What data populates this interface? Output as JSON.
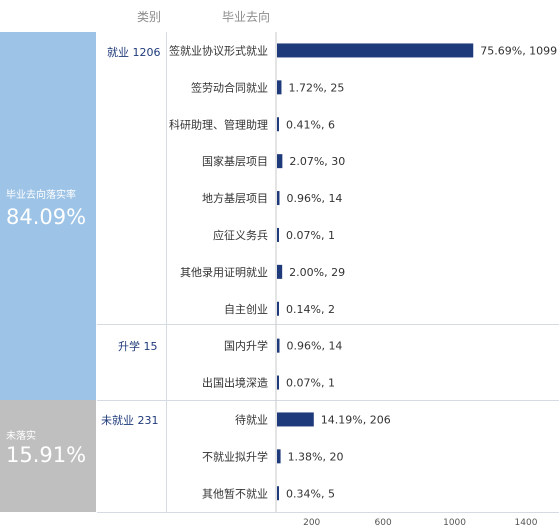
{
  "header": {
    "col_category": "类别",
    "col_destination": "毕业去向"
  },
  "left_blocks": [
    {
      "label": "毕业去向落实率",
      "value": "84.09%",
      "color": "#9dc3e6"
    },
    {
      "label": "未落实",
      "value": "15.91%",
      "color": "#bfbfbf"
    }
  ],
  "categories": [
    {
      "label": "就业 1206"
    },
    {
      "label": "升学 15"
    },
    {
      "label": "未就业 231"
    }
  ],
  "chart_data": {
    "type": "bar",
    "orientation": "horizontal",
    "bar_color": "#1f3a7a",
    "xlim": [
      0,
      1400
    ],
    "xticks": [
      200,
      600,
      1000,
      1400
    ],
    "rows": [
      {
        "group": "就业 1206",
        "label": "签就业协议形式就业",
        "value": 1099,
        "percent": "75.69%",
        "display": "75.69%, 1099"
      },
      {
        "group": "就业 1206",
        "label": "签劳动合同就业",
        "value": 25,
        "percent": "1.72%",
        "display": "1.72%, 25"
      },
      {
        "group": "就业 1206",
        "label": "科研助理、管理助理",
        "value": 6,
        "percent": "0.41%",
        "display": "0.41%, 6"
      },
      {
        "group": "就业 1206",
        "label": "国家基层项目",
        "value": 30,
        "percent": "2.07%",
        "display": "2.07%, 30"
      },
      {
        "group": "就业 1206",
        "label": "地方基层项目",
        "value": 14,
        "percent": "0.96%",
        "display": "0.96%, 14"
      },
      {
        "group": "就业 1206",
        "label": "应征义务兵",
        "value": 1,
        "percent": "0.07%",
        "display": "0.07%, 1"
      },
      {
        "group": "就业 1206",
        "label": "其他录用证明就业",
        "value": 29,
        "percent": "2.00%",
        "display": "2.00%, 29"
      },
      {
        "group": "就业 1206",
        "label": "自主创业",
        "value": 2,
        "percent": "0.14%",
        "display": "0.14%, 2"
      },
      {
        "group": "升学 15",
        "label": "国内升学",
        "value": 14,
        "percent": "0.96%",
        "display": "0.96%, 14"
      },
      {
        "group": "升学 15",
        "label": "出国出境深造",
        "value": 1,
        "percent": "0.07%",
        "display": "0.07%, 1"
      },
      {
        "group": "未就业 231",
        "label": "待就业",
        "value": 206,
        "percent": "14.19%",
        "display": "14.19%, 206"
      },
      {
        "group": "未就业 231",
        "label": "不就业拟升学",
        "value": 20,
        "percent": "1.38%",
        "display": "1.38%, 20"
      },
      {
        "group": "未就业 231",
        "label": "其他暂不就业",
        "value": 5,
        "percent": "0.34%",
        "display": "0.34%, 5"
      }
    ]
  }
}
